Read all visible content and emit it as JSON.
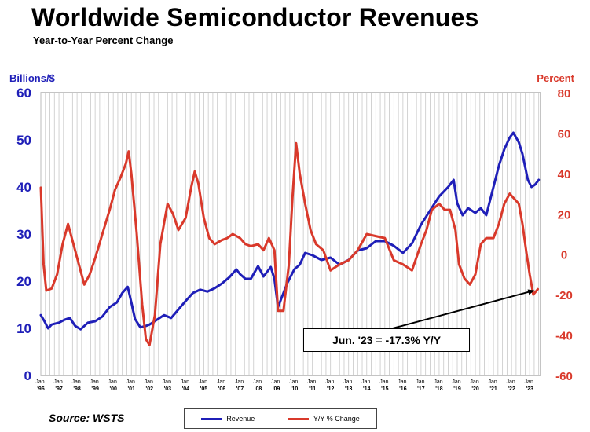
{
  "header": {
    "title": "Worldwide Semiconductor Revenues",
    "subtitle": "Year-to-Year Percent Change"
  },
  "footer": {
    "source": "Source: WSTS"
  },
  "annotation": {
    "text": "Jun. '23 = -17.3% Y/Y"
  },
  "colors": {
    "revenue": "#1f1fb8",
    "yoy": "#d9392b",
    "grid": "#c8c8c8"
  },
  "chart_data": {
    "type": "line",
    "title": "Worldwide Semiconductor Revenues",
    "subtitle": "Year-to-Year Percent Change",
    "y_left_label": "Billions/$",
    "y_right_label": "Percent",
    "y_left_ticks": [
      "0",
      "10",
      "20",
      "30",
      "40",
      "50",
      "60"
    ],
    "y_right_ticks": [
      "-60",
      "-40",
      "-20",
      "0",
      "20",
      "40",
      "60",
      "80"
    ],
    "ylim_left": [
      0,
      60
    ],
    "ylim_right": [
      -60,
      80
    ],
    "xlim": [
      1996.0,
      2023.6
    ],
    "x_tick_years": [
      "'96",
      "'97",
      "'98",
      "'99",
      "'00",
      "'01",
      "'02",
      "'03",
      "'04",
      "'05",
      "'06",
      "'07",
      "'08",
      "'09",
      "'10",
      "'11",
      "'12",
      "'13",
      "'14",
      "'15",
      "'16",
      "'17",
      "'18",
      "'19",
      "'20",
      "'21",
      "'22",
      "'23"
    ],
    "x_tick_month": "Jan.",
    "grid": "vertical",
    "legend_position": "bottom",
    "series": [
      {
        "name": "Revenue",
        "axis": "left",
        "x": [
          1996.0,
          1996.2,
          1996.4,
          1996.6,
          1997.0,
          1997.3,
          1997.6,
          1997.9,
          1998.2,
          1998.6,
          1999.0,
          1999.4,
          1999.8,
          2000.2,
          2000.5,
          2000.8,
          2001.0,
          2001.2,
          2001.5,
          2001.8,
          2002.0,
          2002.4,
          2002.8,
          2003.2,
          2003.6,
          2004.0,
          2004.4,
          2004.8,
          2005.2,
          2005.6,
          2006.0,
          2006.4,
          2006.8,
          2007.0,
          2007.3,
          2007.6,
          2008.0,
          2008.3,
          2008.7,
          2008.9,
          2009.1,
          2009.3,
          2009.6,
          2010.0,
          2010.3,
          2010.6,
          2011.0,
          2011.5,
          2012.0,
          2012.5,
          2013.0,
          2013.5,
          2014.0,
          2014.5,
          2015.0,
          2015.5,
          2016.0,
          2016.5,
          2017.0,
          2017.5,
          2018.0,
          2018.5,
          2018.8,
          2019.0,
          2019.3,
          2019.6,
          2020.0,
          2020.3,
          2020.6,
          2021.0,
          2021.3,
          2021.6,
          2021.9,
          2022.1,
          2022.4,
          2022.6,
          2022.9,
          2023.1,
          2023.3,
          2023.5
        ],
        "values": [
          12.8,
          11.5,
          10.0,
          10.8,
          11.2,
          11.8,
          12.2,
          10.5,
          9.8,
          11.2,
          11.5,
          12.5,
          14.5,
          15.5,
          17.5,
          18.8,
          15.5,
          12.0,
          10.2,
          10.5,
          10.8,
          11.8,
          12.8,
          12.2,
          14.0,
          15.8,
          17.5,
          18.2,
          17.8,
          18.5,
          19.5,
          20.8,
          22.5,
          21.5,
          20.5,
          20.5,
          23.2,
          21.0,
          23.0,
          20.5,
          14.5,
          16.5,
          19.5,
          22.5,
          23.5,
          26.0,
          25.5,
          24.5,
          25.0,
          23.5,
          24.5,
          26.5,
          27.0,
          28.5,
          28.5,
          27.5,
          26.0,
          28.0,
          32.0,
          35.0,
          38.0,
          40.0,
          41.5,
          36.5,
          34.0,
          35.5,
          34.5,
          35.5,
          34.0,
          40.0,
          44.5,
          48.0,
          50.5,
          51.5,
          49.5,
          47.0,
          41.5,
          40.0,
          40.5,
          41.5
        ]
      },
      {
        "name": "Y/Y % Change",
        "axis": "right",
        "x": [
          1996.0,
          1996.15,
          1996.3,
          1996.6,
          1996.9,
          1997.2,
          1997.5,
          1997.8,
          1998.1,
          1998.4,
          1998.7,
          1999.0,
          1999.4,
          1999.8,
          2000.1,
          2000.4,
          2000.7,
          2000.85,
          2001.0,
          2001.3,
          2001.6,
          2001.8,
          2002.0,
          2002.3,
          2002.6,
          2003.0,
          2003.3,
          2003.6,
          2004.0,
          2004.3,
          2004.5,
          2004.7,
          2005.0,
          2005.3,
          2005.6,
          2006.0,
          2006.3,
          2006.6,
          2007.0,
          2007.3,
          2007.6,
          2008.0,
          2008.3,
          2008.6,
          2008.9,
          2009.1,
          2009.4,
          2009.7,
          2009.9,
          2010.1,
          2010.3,
          2010.6,
          2010.9,
          2011.2,
          2011.6,
          2012.0,
          2012.5,
          2013.0,
          2013.5,
          2014.0,
          2014.5,
          2015.0,
          2015.5,
          2016.0,
          2016.5,
          2017.0,
          2017.3,
          2017.6,
          2018.0,
          2018.3,
          2018.6,
          2018.9,
          2019.1,
          2019.4,
          2019.7,
          2020.0,
          2020.3,
          2020.6,
          2021.0,
          2021.3,
          2021.6,
          2021.9,
          2022.1,
          2022.4,
          2022.6,
          2022.8,
          2023.0,
          2023.2,
          2023.45
        ],
        "values": [
          33,
          -5,
          -18,
          -17,
          -10,
          5,
          15,
          5,
          -5,
          -15,
          -10,
          -2,
          10,
          22,
          32,
          38,
          45,
          51,
          40,
          10,
          -25,
          -42,
          -45,
          -30,
          5,
          25,
          20,
          12,
          18,
          33,
          41,
          35,
          18,
          8,
          5,
          7,
          8,
          10,
          8,
          5,
          4,
          5,
          2,
          8,
          2,
          -28,
          -28,
          -5,
          28,
          55,
          40,
          25,
          12,
          5,
          2,
          -8,
          -5,
          -3,
          2,
          10,
          9,
          8,
          -3,
          -5,
          -8,
          5,
          12,
          22,
          25,
          22,
          22,
          12,
          -5,
          -12,
          -15,
          -10,
          5,
          8,
          8,
          15,
          25,
          30,
          28,
          25,
          15,
          2,
          -10,
          -20,
          -17.3
        ]
      }
    ]
  }
}
